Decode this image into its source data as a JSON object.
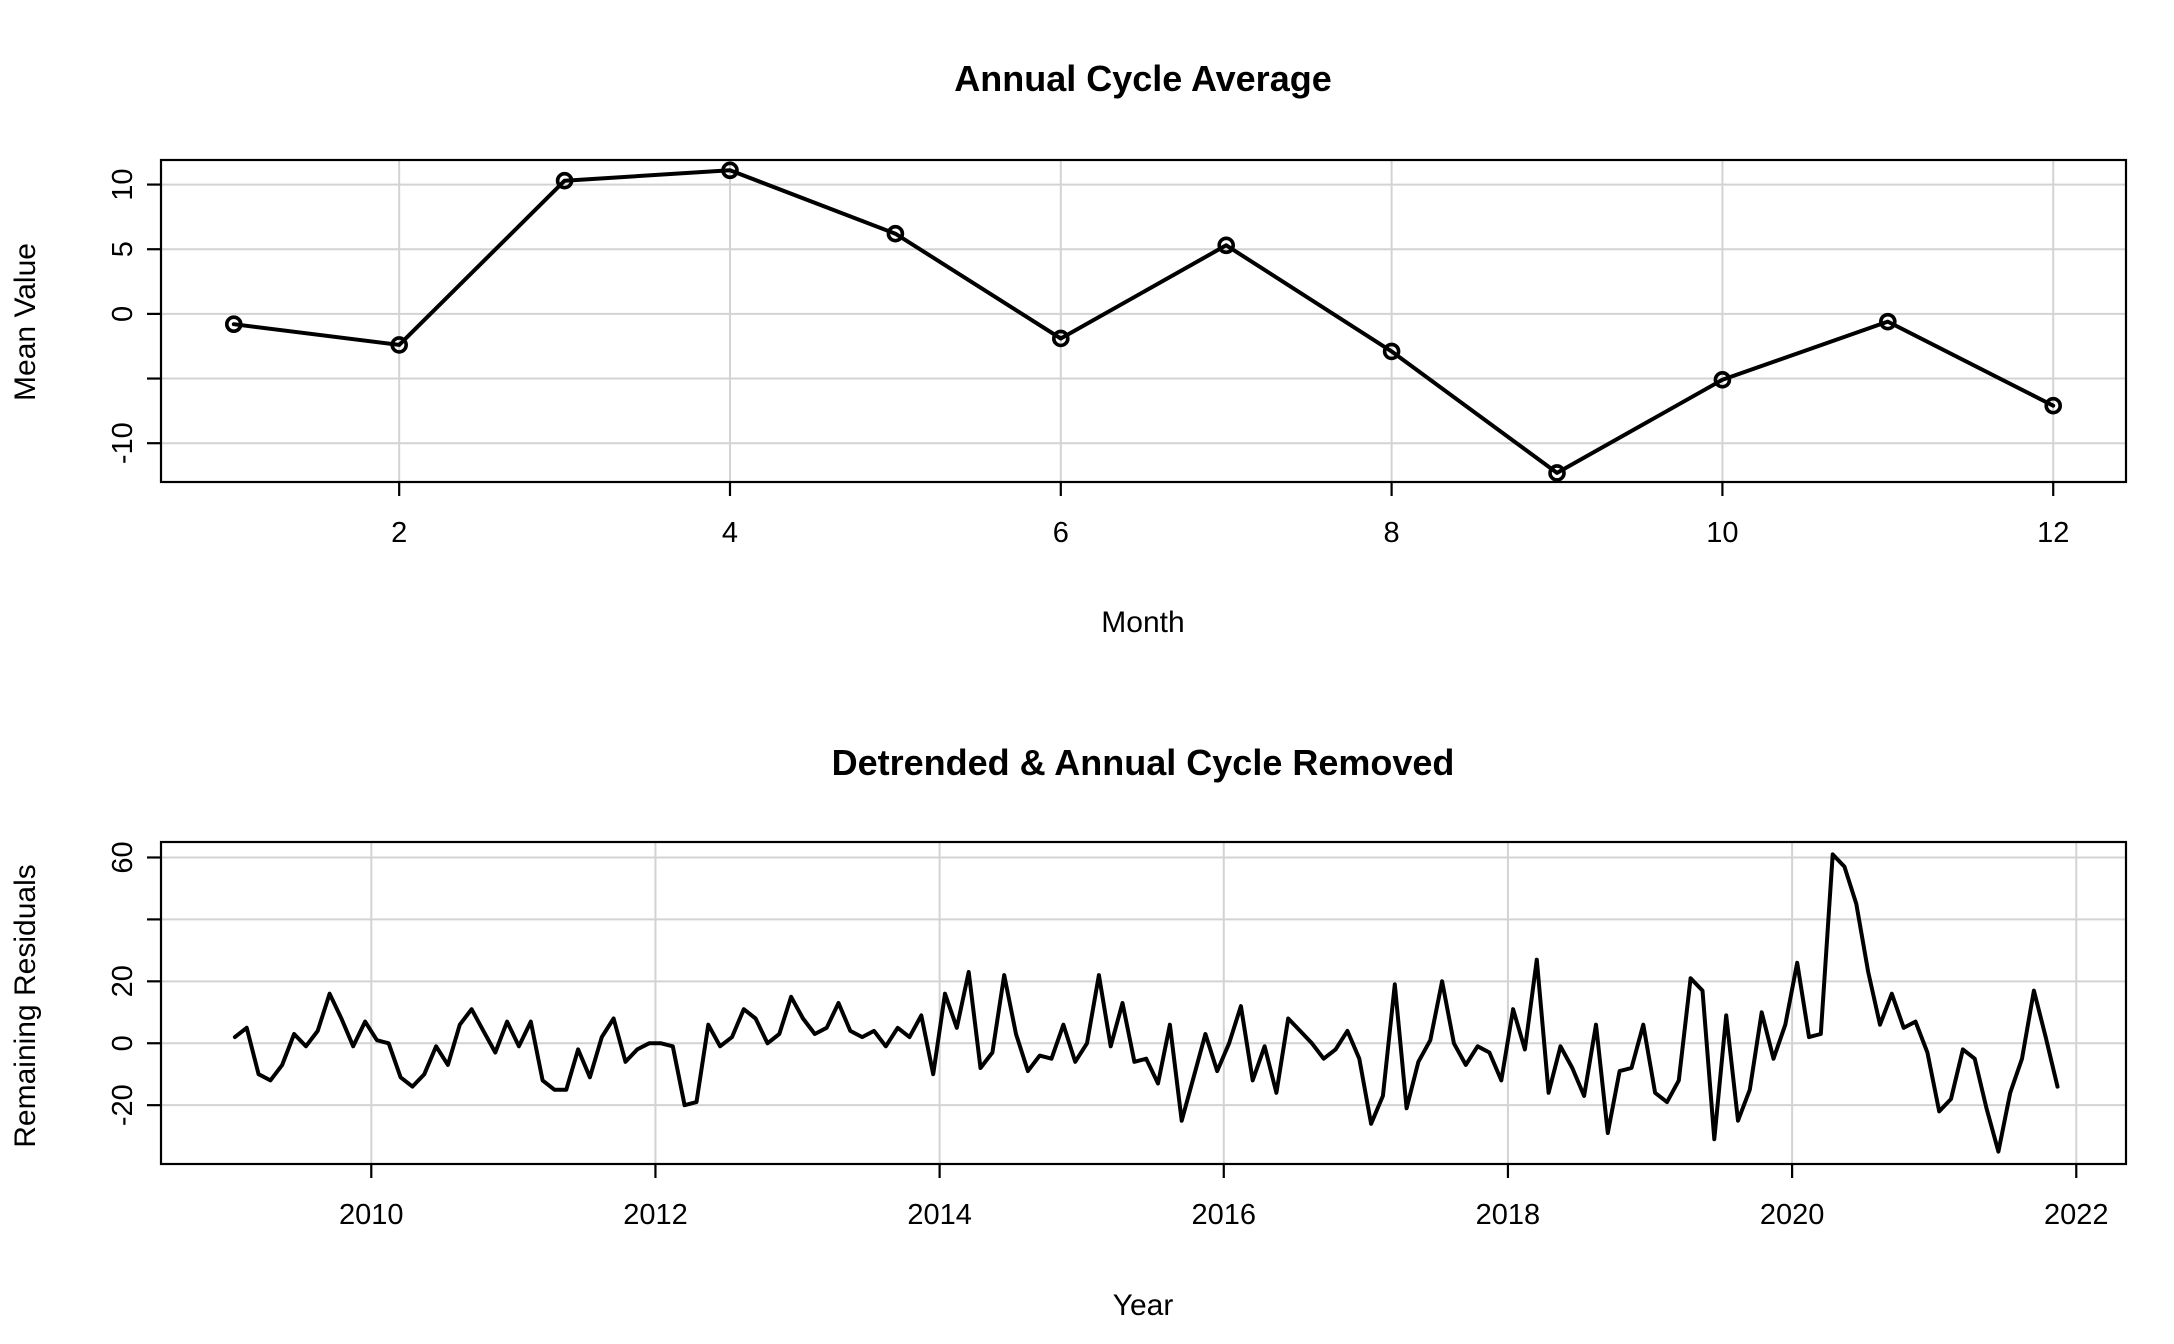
{
  "chart_data": [
    {
      "type": "line",
      "title": "Annual Cycle Average",
      "xlabel": "Month",
      "ylabel": "Mean Value",
      "markers": "circle",
      "x": [
        1,
        2,
        3,
        4,
        5,
        6,
        7,
        8,
        9,
        10,
        11,
        12
      ],
      "values": [
        -0.8,
        -2.4,
        10.3,
        11.1,
        6.2,
        -1.9,
        5.3,
        -2.9,
        -12.3,
        -5.1,
        -0.6,
        -7.1
      ],
      "xticks": [
        2,
        4,
        6,
        8,
        10,
        12
      ],
      "yticks": [
        -10,
        -5,
        0,
        5,
        10
      ],
      "ytick_labels": [
        "-10",
        "",
        "0",
        "5",
        "10"
      ],
      "xlim": [
        0.56,
        12.44
      ],
      "ylim": [
        -13.0,
        11.9
      ],
      "grid": true
    },
    {
      "type": "line",
      "title": "Detrended & Annual Cycle Removed",
      "xlabel": "Year",
      "ylabel": "Remaining Residuals",
      "xticks": [
        2010,
        2012,
        2014,
        2016,
        2018,
        2020,
        2022
      ],
      "yticks": [
        -20,
        0,
        20,
        40,
        60
      ],
      "ytick_labels": [
        "-20",
        "0",
        "20",
        "",
        "60"
      ],
      "xlim": [
        2008.52,
        2022.35
      ],
      "ylim": [
        -39.0,
        65.0
      ],
      "grid": true,
      "x_start": 2009.04,
      "x_step": 0.0833,
      "values": [
        2,
        5,
        -10,
        -12,
        -7,
        3,
        -1,
        4,
        16,
        8,
        -1,
        7,
        1,
        0,
        -11,
        -14,
        -10,
        -1,
        -7,
        6,
        11,
        4,
        -3,
        7,
        -1,
        7,
        -12,
        -15,
        -15,
        -2,
        -11,
        2,
        8,
        -6,
        -2,
        0,
        0,
        -1,
        -20,
        -19,
        6,
        -1,
        2,
        11,
        8,
        0,
        3,
        15,
        8,
        3,
        5,
        13,
        4,
        2,
        4,
        -1,
        5,
        2,
        9,
        -10,
        16,
        5,
        23,
        -8,
        -3,
        22,
        3,
        -9,
        -4,
        -5,
        6,
        -6,
        0,
        22,
        -1,
        13,
        -6,
        -5,
        -13,
        6,
        -25,
        -11,
        3,
        -9,
        0,
        12,
        -12,
        -1,
        -16,
        8,
        4,
        0,
        -5,
        -2,
        4,
        -5,
        -26,
        -17,
        19,
        -21,
        -6,
        1,
        20,
        0,
        -7,
        -1,
        -3,
        -12,
        11,
        -2,
        27,
        -16,
        -1,
        -8,
        -17,
        6,
        -29,
        -9,
        -8,
        6,
        -16,
        -19,
        -12,
        21,
        17,
        -31,
        9,
        -25,
        -15,
        10,
        -5,
        6,
        26,
        2,
        3,
        61,
        57,
        45,
        23,
        6,
        16,
        5,
        7,
        -3,
        -22,
        -18,
        -2,
        -5,
        -21,
        -35,
        -16,
        -5,
        17,
        2,
        -14
      ]
    }
  ]
}
